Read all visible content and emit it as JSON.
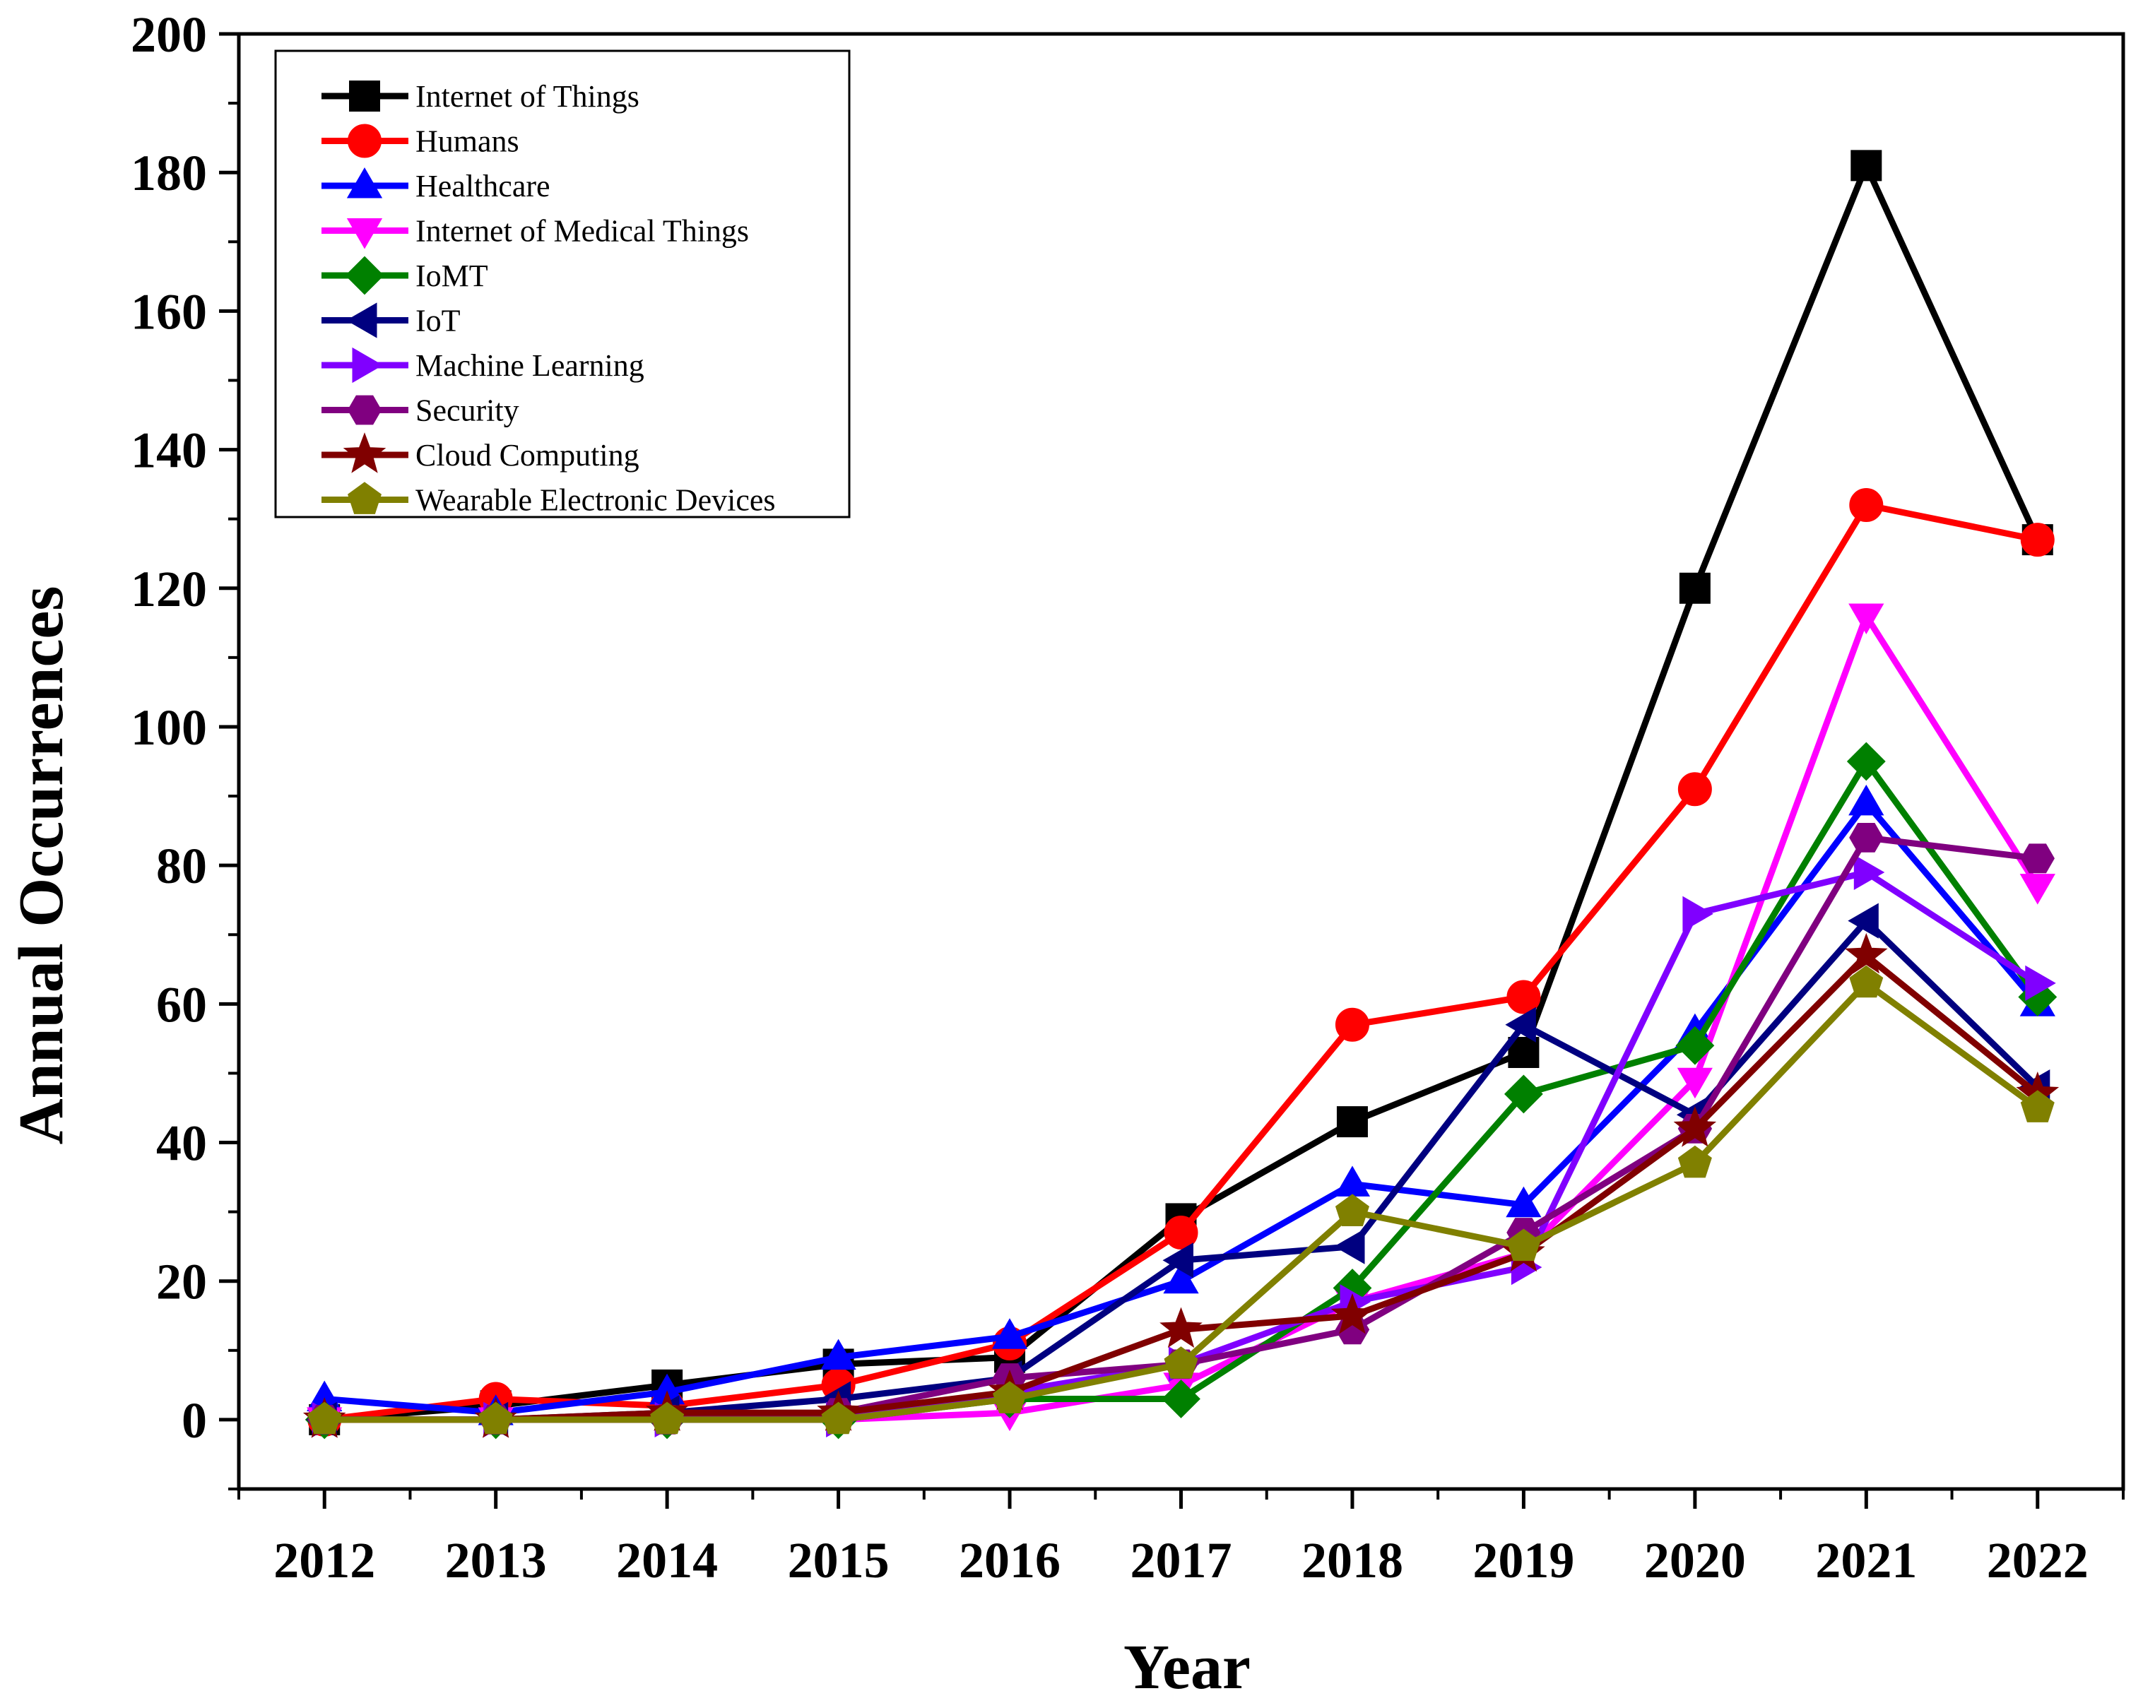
{
  "chart_data": {
    "type": "line",
    "title": "",
    "xlabel": "Year",
    "ylabel": "Annual Occurrences",
    "x": [
      2012,
      2013,
      2014,
      2015,
      2016,
      2017,
      2018,
      2019,
      2020,
      2021,
      2022
    ],
    "xlim": [
      2011.5,
      2022.5
    ],
    "ylim": [
      -10,
      200
    ],
    "y_ticks": [
      0,
      20,
      40,
      60,
      80,
      100,
      120,
      140,
      160,
      180,
      200
    ],
    "grid": false,
    "legend_position": "top-left",
    "series": [
      {
        "name": "Internet of Things",
        "color": "#000000",
        "marker": "square",
        "values": [
          0,
          2,
          5,
          8,
          9,
          29,
          43,
          53,
          120,
          181,
          127
        ]
      },
      {
        "name": "Humans",
        "color": "#ff0000",
        "marker": "circle",
        "values": [
          0,
          3,
          2,
          5,
          11,
          27,
          57,
          61,
          91,
          132,
          127
        ]
      },
      {
        "name": "Healthcare",
        "color": "#0000ff",
        "marker": "triangle-up",
        "values": [
          3,
          1,
          4,
          9,
          12,
          20,
          34,
          31,
          56,
          89,
          60
        ]
      },
      {
        "name": "Internet of Medical Things",
        "color": "#ff00ff",
        "marker": "triangle-down",
        "values": [
          0,
          0,
          0,
          0,
          1,
          5,
          17,
          24,
          49,
          116,
          77
        ]
      },
      {
        "name": "IoMT",
        "color": "#008000",
        "marker": "diamond",
        "values": [
          0,
          0,
          0,
          0,
          3,
          3,
          19,
          47,
          54,
          95,
          61
        ]
      },
      {
        "name": "IoT",
        "color": "#000080",
        "marker": "triangle-left",
        "values": [
          0,
          0,
          1,
          3,
          6,
          23,
          25,
          57,
          44,
          72,
          48
        ]
      },
      {
        "name": "Machine Learning",
        "color": "#8000ff",
        "marker": "triangle-right",
        "values": [
          0,
          0,
          0,
          0,
          4,
          8,
          17,
          22,
          73,
          79,
          63
        ]
      },
      {
        "name": "Security",
        "color": "#800080",
        "marker": "hexagon",
        "values": [
          0,
          0,
          0,
          1,
          6,
          8,
          13,
          27,
          42,
          84,
          81
        ]
      },
      {
        "name": "Cloud Computing",
        "color": "#800000",
        "marker": "star",
        "values": [
          0,
          0,
          1,
          1,
          4,
          13,
          15,
          24,
          42,
          67,
          47
        ]
      },
      {
        "name": "Wearable Electronic Devices",
        "color": "#808000",
        "marker": "pentagon",
        "values": [
          0,
          0,
          0,
          0,
          3,
          8,
          30,
          25,
          37,
          63,
          45
        ]
      }
    ]
  }
}
